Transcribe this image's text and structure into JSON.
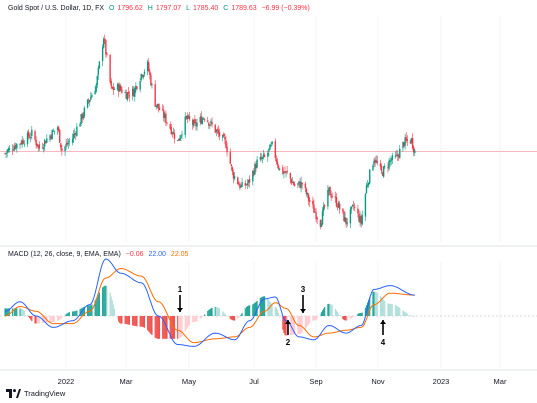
{
  "price_legend": {
    "symbol": "Gold Spot / U.S. Dollar, 1D, FX",
    "o_label": "O",
    "o": "1796.62",
    "h_label": "H",
    "h": "1797.07",
    "l_label": "L",
    "l": "1785.40",
    "c_label": "C",
    "c": "1789.63",
    "change": "−6.99 (−0.39%)"
  },
  "macd_legend": {
    "title": "MACD (12, 26, close, 9, EMA, EMA)",
    "hist": "−0.06",
    "macd": "22.00",
    "signal": "22.05"
  },
  "x_axis_labels": [
    "2022",
    "Mar",
    "May",
    "Jul",
    "Sep",
    "Nov",
    "2023",
    "Mar"
  ],
  "annotations": [
    "1",
    "2",
    "3",
    "4"
  ],
  "footer": {
    "brand": "TradingView"
  },
  "colors": {
    "up": "#089981",
    "down": "#f23645",
    "macd": "#2962ff",
    "signal": "#ff6d00",
    "price_line": "#f7a1a8",
    "hist_up": "#26a69a",
    "hist_down": "#ef5350"
  },
  "chart_data": [
    {
      "type": "candlestick",
      "title": "Gold Spot / U.S. Dollar, 1D, FX",
      "interval": "1D",
      "x_range": [
        "2021-12-06",
        "2023-04-15"
      ],
      "y_estimated_range": [
        1620,
        2070
      ],
      "close_path": [
        [
          "2021-12-06",
          1785
        ],
        [
          "2021-12-13",
          1800
        ],
        [
          "2021-12-20",
          1810
        ],
        [
          "2021-12-31",
          1829
        ],
        [
          "2022-01-07",
          1797
        ],
        [
          "2022-01-14",
          1818
        ],
        [
          "2022-01-24",
          1845
        ],
        [
          "2022-01-28",
          1792
        ],
        [
          "2022-02-07",
          1820
        ],
        [
          "2022-02-16",
          1870
        ],
        [
          "2022-02-23",
          1910
        ],
        [
          "2022-03-01",
          1940
        ],
        [
          "2022-03-08",
          2050
        ],
        [
          "2022-03-15",
          1930
        ],
        [
          "2022-03-22",
          1935
        ],
        [
          "2022-03-29",
          1920
        ],
        [
          "2022-04-05",
          1925
        ],
        [
          "2022-04-12",
          1965
        ],
        [
          "2022-04-18",
          1985
        ],
        [
          "2022-04-25",
          1900
        ],
        [
          "2022-05-03",
          1870
        ],
        [
          "2022-05-10",
          1840
        ],
        [
          "2022-05-16",
          1812
        ],
        [
          "2022-05-24",
          1865
        ],
        [
          "2022-06-01",
          1848
        ],
        [
          "2022-06-10",
          1870
        ],
        [
          "2022-06-20",
          1838
        ],
        [
          "2022-06-30",
          1807
        ],
        [
          "2022-07-06",
          1740
        ],
        [
          "2022-07-14",
          1708
        ],
        [
          "2022-07-21",
          1718
        ],
        [
          "2022-07-29",
          1765
        ],
        [
          "2022-08-05",
          1775
        ],
        [
          "2022-08-12",
          1802
        ],
        [
          "2022-08-19",
          1748
        ],
        [
          "2022-08-26",
          1738
        ],
        [
          "2022-09-02",
          1712
        ],
        [
          "2022-09-09",
          1716
        ],
        [
          "2022-09-16",
          1675
        ],
        [
          "2022-09-26",
          1628
        ],
        [
          "2022-10-04",
          1700
        ],
        [
          "2022-10-12",
          1670
        ],
        [
          "2022-10-20",
          1628
        ],
        [
          "2022-10-27",
          1664
        ],
        [
          "2022-11-03",
          1628
        ],
        [
          "2022-11-08",
          1710
        ],
        [
          "2022-11-15",
          1775
        ],
        [
          "2022-11-22",
          1740
        ],
        [
          "2022-11-30",
          1768
        ],
        [
          "2022-12-06",
          1775
        ],
        [
          "2022-12-13",
          1810
        ],
        [
          "2022-12-20",
          1815
        ],
        [
          "2022-12-23",
          1790
        ]
      ],
      "last_price_line": 1789.63
    },
    {
      "type": "line",
      "title": "MACD (12, 26, close, 9, EMA, EMA)",
      "series": [
        {
          "name": "MACD",
          "values": [
            [
              "2021-12-06",
              5
            ],
            [
              "2021-12-20",
              15
            ],
            [
              "2022-01-04",
              0
            ],
            [
              "2022-01-20",
              -12
            ],
            [
              "2022-02-07",
              -5
            ],
            [
              "2022-02-23",
              12
            ],
            [
              "2022-03-10",
              60
            ],
            [
              "2022-03-24",
              45
            ],
            [
              "2022-04-12",
              35
            ],
            [
              "2022-04-28",
              0
            ],
            [
              "2022-05-16",
              -30
            ],
            [
              "2022-05-31",
              -32
            ],
            [
              "2022-06-20",
              -18
            ],
            [
              "2022-07-08",
              -25
            ],
            [
              "2022-07-22",
              -5
            ],
            [
              "2022-08-05",
              18
            ],
            [
              "2022-08-15",
              20
            ],
            [
              "2022-08-25",
              -5
            ],
            [
              "2022-09-06",
              -22
            ],
            [
              "2022-09-20",
              -25
            ],
            [
              "2022-10-04",
              -10
            ],
            [
              "2022-10-20",
              -18
            ],
            [
              "2022-11-03",
              -10
            ],
            [
              "2022-11-15",
              28
            ],
            [
              "2022-11-30",
              32
            ],
            [
              "2022-12-23",
              22
            ]
          ]
        },
        {
          "name": "Signal",
          "values": [
            [
              "2021-12-06",
              0
            ],
            [
              "2021-12-20",
              10
            ],
            [
              "2022-01-04",
              5
            ],
            [
              "2022-01-20",
              -8
            ],
            [
              "2022-02-07",
              -8
            ],
            [
              "2022-02-23",
              5
            ],
            [
              "2022-03-10",
              40
            ],
            [
              "2022-03-24",
              50
            ],
            [
              "2022-04-12",
              42
            ],
            [
              "2022-04-28",
              15
            ],
            [
              "2022-05-16",
              -15
            ],
            [
              "2022-05-31",
              -28
            ],
            [
              "2022-06-20",
              -24
            ],
            [
              "2022-07-08",
              -22
            ],
            [
              "2022-07-22",
              -12
            ],
            [
              "2022-08-05",
              5
            ],
            [
              "2022-08-15",
              14
            ],
            [
              "2022-08-25",
              8
            ],
            [
              "2022-09-06",
              -10
            ],
            [
              "2022-09-20",
              -22
            ],
            [
              "2022-10-04",
              -18
            ],
            [
              "2022-10-20",
              -15
            ],
            [
              "2022-11-03",
              -12
            ],
            [
              "2022-11-15",
              12
            ],
            [
              "2022-11-30",
              24
            ],
            [
              "2022-12-23",
              22
            ]
          ]
        }
      ],
      "histogram": "MACD minus Signal",
      "arrows": [
        {
          "label": "1",
          "direction": "down",
          "x": "2022-04-26"
        },
        {
          "label": "2",
          "direction": "up",
          "x": "2022-07-22"
        },
        {
          "label": "3",
          "direction": "down",
          "x": "2022-08-12"
        },
        {
          "label": "4",
          "direction": "up",
          "x": "2022-11-04"
        }
      ]
    }
  ]
}
